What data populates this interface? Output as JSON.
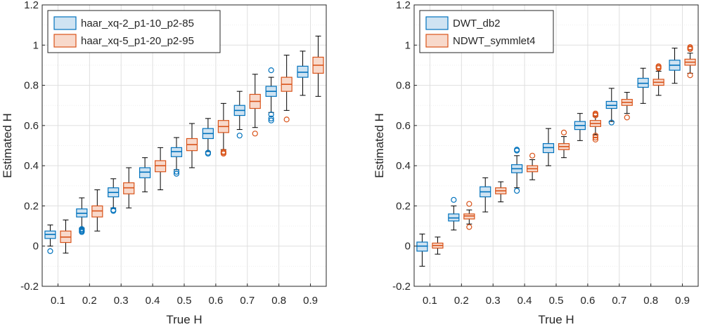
{
  "chart_data": [
    {
      "type": "box",
      "xlabel": "True H",
      "ylabel": "Estimated H",
      "xticks": [
        "0.1",
        "0.2",
        "0.3",
        "0.4",
        "0.5",
        "0.6",
        "0.7",
        "0.8",
        "0.9"
      ],
      "yticks": [
        "-0.2",
        "0",
        "0.2",
        "0.4",
        "0.6",
        "0.8",
        "1",
        "1.2"
      ],
      "ylim": [
        -0.2,
        1.2
      ],
      "grid": true,
      "legend_position": "top-left",
      "series": [
        {
          "name": "haar_xq-2_p1-10_p2-85",
          "color": "#0072BD",
          "fill": "#cfe3f2",
          "boxes": [
            {
              "x": 0.1,
              "wlo": 0.0,
              "q1": 0.038,
              "med": 0.058,
              "q3": 0.075,
              "whi": 0.105,
              "outliers": [
                -0.025
              ]
            },
            {
              "x": 0.2,
              "wlo": 0.09,
              "q1": 0.145,
              "med": 0.163,
              "q3": 0.185,
              "whi": 0.24,
              "outliers": [
                0.085,
                0.08,
                0.075,
                0.07
              ]
            },
            {
              "x": 0.3,
              "wlo": 0.19,
              "q1": 0.245,
              "med": 0.267,
              "q3": 0.29,
              "whi": 0.335,
              "outliers": [
                0.18,
                0.175
              ]
            },
            {
              "x": 0.4,
              "wlo": 0.27,
              "q1": 0.34,
              "med": 0.368,
              "q3": 0.39,
              "whi": 0.44,
              "outliers": []
            },
            {
              "x": 0.5,
              "wlo": 0.38,
              "q1": 0.445,
              "med": 0.47,
              "q3": 0.49,
              "whi": 0.54,
              "outliers": [
                0.37,
                0.36
              ]
            },
            {
              "x": 0.6,
              "wlo": 0.47,
              "q1": 0.535,
              "med": 0.56,
              "q3": 0.585,
              "whi": 0.635,
              "outliers": [
                0.465,
                0.46
              ]
            },
            {
              "x": 0.7,
              "wlo": 0.58,
              "q1": 0.65,
              "med": 0.675,
              "q3": 0.7,
              "whi": 0.77,
              "outliers": [
                0.55
              ]
            },
            {
              "x": 0.8,
              "wlo": 0.665,
              "q1": 0.745,
              "med": 0.77,
              "q3": 0.795,
              "whi": 0.84,
              "outliers": [
                0.875,
                0.655,
                0.635,
                0.625
              ]
            },
            {
              "x": 0.9,
              "wlo": 0.75,
              "q1": 0.84,
              "med": 0.865,
              "q3": 0.895,
              "whi": 0.97,
              "outliers": []
            }
          ]
        },
        {
          "name": "haar_xq-5_p1-20_p2-95",
          "color": "#D95319",
          "fill": "#f8d9cb",
          "boxes": [
            {
              "x": 0.1,
              "wlo": -0.035,
              "q1": 0.018,
              "med": 0.045,
              "q3": 0.075,
              "whi": 0.13,
              "outliers": []
            },
            {
              "x": 0.2,
              "wlo": 0.075,
              "q1": 0.145,
              "med": 0.175,
              "q3": 0.2,
              "whi": 0.28,
              "outliers": []
            },
            {
              "x": 0.3,
              "wlo": 0.19,
              "q1": 0.26,
              "med": 0.29,
              "q3": 0.315,
              "whi": 0.39,
              "outliers": []
            },
            {
              "x": 0.4,
              "wlo": 0.28,
              "q1": 0.37,
              "med": 0.4,
              "q3": 0.425,
              "whi": 0.49,
              "outliers": []
            },
            {
              "x": 0.5,
              "wlo": 0.39,
              "q1": 0.475,
              "med": 0.505,
              "q3": 0.535,
              "whi": 0.61,
              "outliers": []
            },
            {
              "x": 0.6,
              "wlo": 0.48,
              "q1": 0.565,
              "med": 0.595,
              "q3": 0.625,
              "whi": 0.71,
              "outliers": [
                0.47,
                0.465,
                0.46
              ]
            },
            {
              "x": 0.7,
              "wlo": 0.59,
              "q1": 0.685,
              "med": 0.72,
              "q3": 0.755,
              "whi": 0.855,
              "outliers": [
                0.56
              ]
            },
            {
              "x": 0.8,
              "wlo": 0.675,
              "q1": 0.77,
              "med": 0.805,
              "q3": 0.84,
              "whi": 0.95,
              "outliers": [
                0.63
              ]
            },
            {
              "x": 0.9,
              "wlo": 0.745,
              "q1": 0.86,
              "med": 0.9,
              "q3": 0.94,
              "whi": 1.045,
              "outliers": []
            }
          ]
        }
      ]
    },
    {
      "type": "box",
      "xlabel": "True H",
      "ylabel": "Estimated H",
      "xticks": [
        "0.1",
        "0.2",
        "0.3",
        "0.4",
        "0.5",
        "0.6",
        "0.7",
        "0.8",
        "0.9"
      ],
      "yticks": [
        "-0.2",
        "0",
        "0.2",
        "0.4",
        "0.6",
        "0.8",
        "1",
        "1.2"
      ],
      "ylim": [
        -0.2,
        1.2
      ],
      "grid": true,
      "legend_position": "top-left",
      "series": [
        {
          "name": "DWT_db2",
          "color": "#0072BD",
          "fill": "#cfe3f2",
          "boxes": [
            {
              "x": 0.1,
              "wlo": -0.1,
              "q1": -0.025,
              "med": 0.0,
              "q3": 0.02,
              "whi": 0.06,
              "outliers": []
            },
            {
              "x": 0.2,
              "wlo": 0.08,
              "q1": 0.125,
              "med": 0.14,
              "q3": 0.16,
              "whi": 0.2,
              "outliers": [
                0.23
              ]
            },
            {
              "x": 0.3,
              "wlo": 0.17,
              "q1": 0.245,
              "med": 0.27,
              "q3": 0.295,
              "whi": 0.34,
              "outliers": []
            },
            {
              "x": 0.4,
              "wlo": 0.29,
              "q1": 0.365,
              "med": 0.385,
              "q3": 0.405,
              "whi": 0.45,
              "outliers": [
                0.48,
                0.475,
                0.275
              ]
            },
            {
              "x": 0.5,
              "wlo": 0.4,
              "q1": 0.465,
              "med": 0.49,
              "q3": 0.51,
              "whi": 0.585,
              "outliers": []
            },
            {
              "x": 0.6,
              "wlo": 0.525,
              "q1": 0.58,
              "med": 0.6,
              "q3": 0.62,
              "whi": 0.66,
              "outliers": []
            },
            {
              "x": 0.7,
              "wlo": 0.62,
              "q1": 0.685,
              "med": 0.7,
              "q3": 0.72,
              "whi": 0.785,
              "outliers": [
                0.615
              ]
            },
            {
              "x": 0.8,
              "wlo": 0.71,
              "q1": 0.79,
              "med": 0.81,
              "q3": 0.835,
              "whi": 0.885,
              "outliers": []
            },
            {
              "x": 0.9,
              "wlo": 0.81,
              "q1": 0.875,
              "med": 0.9,
              "q3": 0.925,
              "whi": 0.985,
              "outliers": []
            }
          ]
        },
        {
          "name": "NDWT_symmlet4",
          "color": "#D95319",
          "fill": "#f8d9cb",
          "boxes": [
            {
              "x": 0.1,
              "wlo": -0.04,
              "q1": -0.01,
              "med": 0.003,
              "q3": 0.015,
              "whi": 0.045,
              "outliers": []
            },
            {
              "x": 0.2,
              "wlo": 0.11,
              "q1": 0.135,
              "med": 0.15,
              "q3": 0.16,
              "whi": 0.18,
              "outliers": [
                0.21,
                0.095
              ]
            },
            {
              "x": 0.3,
              "wlo": 0.22,
              "q1": 0.26,
              "med": 0.275,
              "q3": 0.29,
              "whi": 0.32,
              "outliers": []
            },
            {
              "x": 0.4,
              "wlo": 0.33,
              "q1": 0.37,
              "med": 0.385,
              "q3": 0.4,
              "whi": 0.43,
              "outliers": [
                0.45
              ]
            },
            {
              "x": 0.5,
              "wlo": 0.44,
              "q1": 0.48,
              "med": 0.495,
              "q3": 0.51,
              "whi": 0.545,
              "outliers": [
                0.565
              ]
            },
            {
              "x": 0.6,
              "wlo": 0.555,
              "q1": 0.595,
              "med": 0.61,
              "q3": 0.625,
              "whi": 0.645,
              "outliers": [
                0.66,
                0.655,
                0.65,
                0.55,
                0.54,
                0.53
              ]
            },
            {
              "x": 0.7,
              "wlo": 0.66,
              "q1": 0.7,
              "med": 0.715,
              "q3": 0.73,
              "whi": 0.765,
              "outliers": [
                0.64
              ]
            },
            {
              "x": 0.8,
              "wlo": 0.75,
              "q1": 0.8,
              "med": 0.815,
              "q3": 0.83,
              "whi": 0.87,
              "outliers": [
                0.895,
                0.89,
                0.885
              ]
            },
            {
              "x": 0.9,
              "wlo": 0.86,
              "q1": 0.9,
              "med": 0.915,
              "q3": 0.93,
              "whi": 0.96,
              "outliers": [
                0.99,
                0.985,
                0.98,
                0.85
              ]
            }
          ]
        }
      ]
    }
  ]
}
